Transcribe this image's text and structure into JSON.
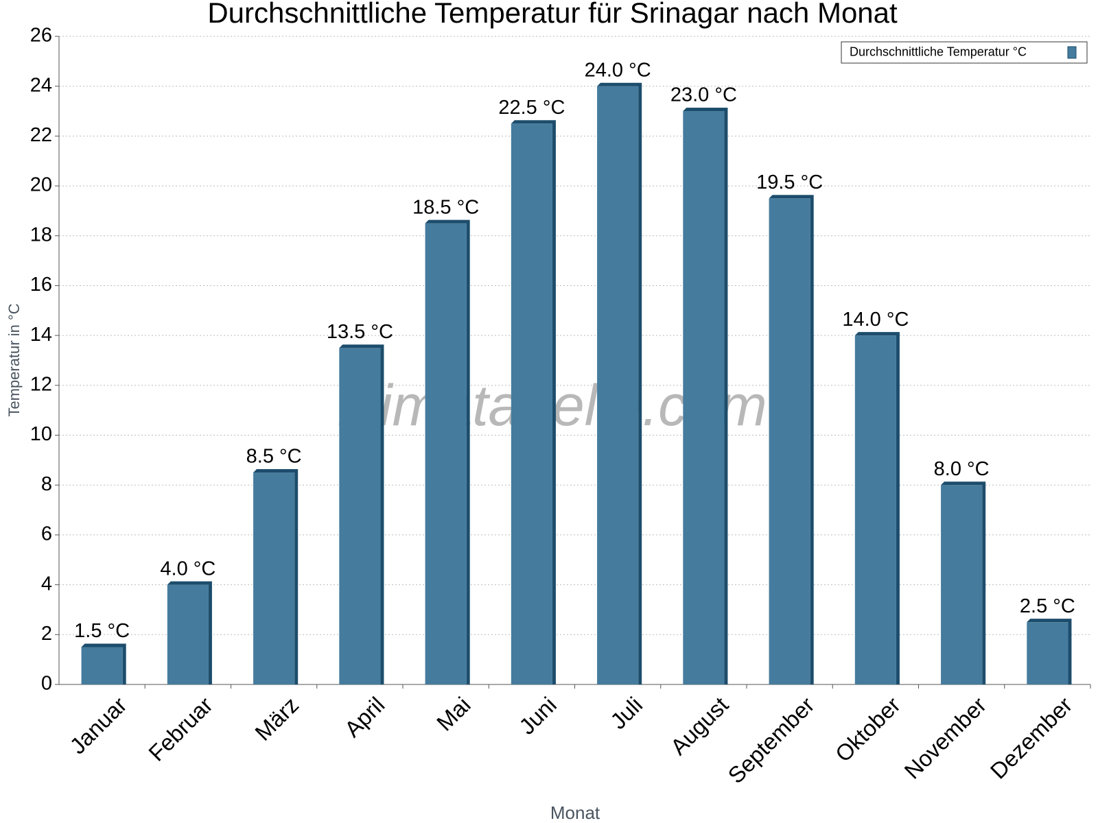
{
  "chart_data": {
    "type": "bar",
    "title": "Durchschnittliche Temperatur für Srinagar nach Monat",
    "watermark": "klimatabelle.com",
    "x_label": "Monat",
    "y_label": "Temperatur in °C",
    "categories": [
      "Januar",
      "Februar",
      "März",
      "April",
      "Mai",
      "Juni",
      "Juli",
      "August",
      "September",
      "Oktober",
      "November",
      "Dezember"
    ],
    "series": [
      {
        "name": "Durchschnittliche Temperatur °C",
        "color": "#457b9d",
        "values": [
          1.5,
          4.0,
          8.5,
          13.5,
          18.5,
          22.5,
          24.0,
          23.0,
          19.5,
          14.0,
          8.0,
          2.5
        ],
        "value_labels": [
          "1.5 °C",
          "4.0 °C",
          "8.5 °C",
          "13.5 °C",
          "18.5 °C",
          "22.5 °C",
          "24.0 °C",
          "23.0 °C",
          "19.5 °C",
          "14.0 °C",
          "8.0 °C",
          "2.5 °C"
        ]
      }
    ],
    "ylim": [
      0,
      26
    ],
    "yticks": [
      0,
      2,
      4,
      6,
      8,
      10,
      12,
      14,
      16,
      18,
      20,
      22,
      24,
      26
    ],
    "grid": true,
    "legend": "upper right"
  }
}
